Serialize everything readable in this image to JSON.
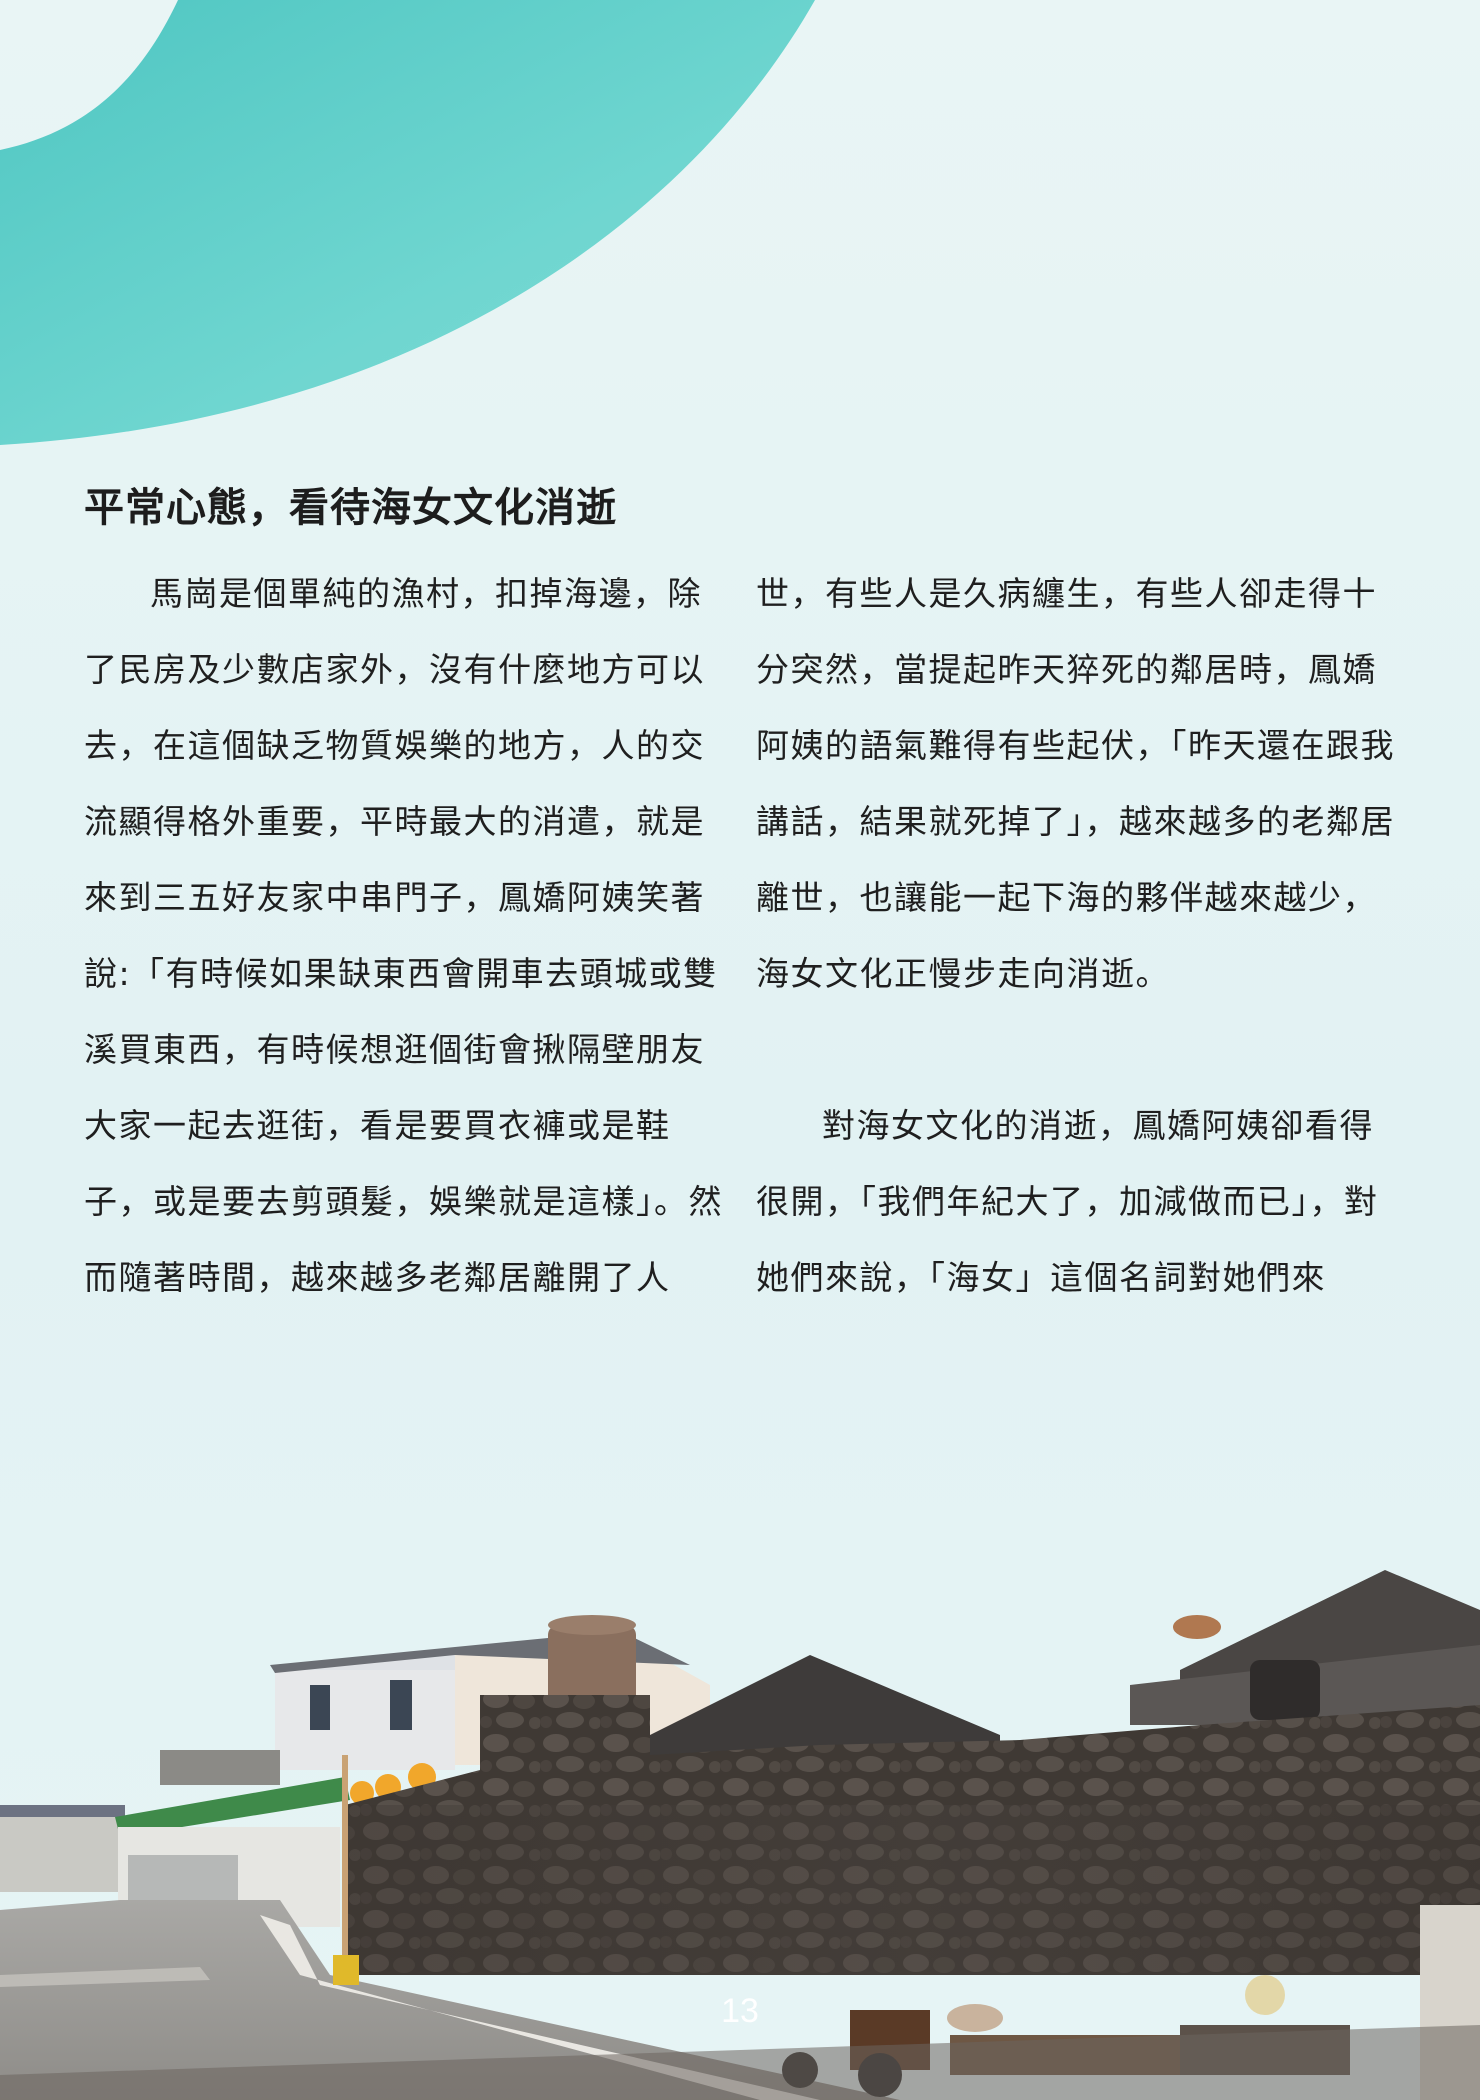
{
  "section_title": "平常心態，看待海女文化消逝",
  "left_column": {
    "paragraph": "馬崗是個單純的漁村，扣掉海邊，除了民房及少數店家外，沒有什麼地方可以去，在這個缺乏物質娛樂的地方，人的交流顯得格外重要，平時最大的消遣，就是來到三五好友家中串門子，鳳嬌阿姨笑著說:「有時候如果缺東西會開車去頭城或雙溪買東西，有時候想逛個街會揪隔壁朋友大家一起去逛街，看是要買衣褲或是鞋子，或是要去剪頭髮，娛樂就是這樣」。然而隨著時間，越來越多老鄰居離開了人"
  },
  "right_column": {
    "paragraph_1": "世，有些人是久病纏生，有些人卻走得十分突然，當提起昨天猝死的鄰居時，鳳嬌阿姨的語氣難得有些起伏，「昨天還在跟我講話，結果就死掉了」，越來越多的老鄰居離世，也讓能一起下海的夥伴越來越少，海女文化正慢步走向消逝。",
    "paragraph_2": "對海女文化的消逝，鳳嬌阿姨卻看得很開，「我們年紀大了，加減做而已」，對她們來說，「海女」這個名詞對她們來"
  },
  "page_number": "13",
  "colors": {
    "arc": "#5fd1cc",
    "background": "#e6f4f5",
    "text": "#1f1f1f"
  }
}
